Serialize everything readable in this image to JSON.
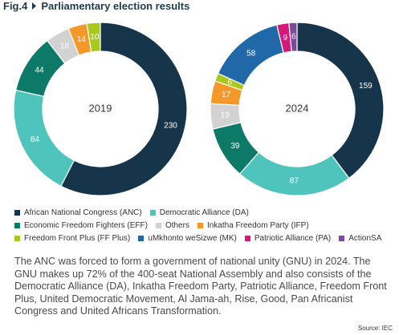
{
  "figure_label": "Fig.4",
  "heading": "Parliamentary election results",
  "chart_data": [
    {
      "type": "donut",
      "title": "2019",
      "categories": [
        "African National Congress (ANC)",
        "Democratic Alliance (DA)",
        "Economic Freedom Fighters (EFF)",
        "Others",
        "Inkatha Freedom Party (IFP)",
        "Freedom Front Plus (FF Plus)"
      ],
      "values": [
        230,
        84,
        44,
        18,
        14,
        10
      ],
      "colors": [
        "#16344a",
        "#4fc4bc",
        "#0d7a68",
        "#d2d2d2",
        "#f5982a",
        "#a8c91c"
      ]
    },
    {
      "type": "donut",
      "title": "2024",
      "categories": [
        "African National Congress (ANC)",
        "Democratic Alliance (DA)",
        "Economic Freedom Fighters (EFF)",
        "Others",
        "Inkatha Freedom Party (IFP)",
        "Freedom Front Plus (FF Plus)",
        "uMkhonto weSizwe (MK)",
        "Patriotic Alliance (PA)",
        "ActionSA"
      ],
      "values": [
        159,
        87,
        39,
        19,
        17,
        6,
        58,
        9,
        6
      ],
      "colors": [
        "#16344a",
        "#4fc4bc",
        "#0d7a68",
        "#d2d2d2",
        "#f5982a",
        "#a8c91c",
        "#2068a8",
        "#d4197a",
        "#7d4a9a"
      ]
    }
  ],
  "description": "The ANC was forced to form a government of national unity (GNU) in 2024. The GNU makes up 72% of the 400-seat National Assembly and also consists of the Democratic Alliance (DA), Inkatha Freedom Party, Patriotic Alliance, Freedom Front Plus, United Democratic Movement, Al Jama-ah, Rise, Good, Pan Africanist Congress and United Africans Transformation.",
  "source": "Source: IEC"
}
